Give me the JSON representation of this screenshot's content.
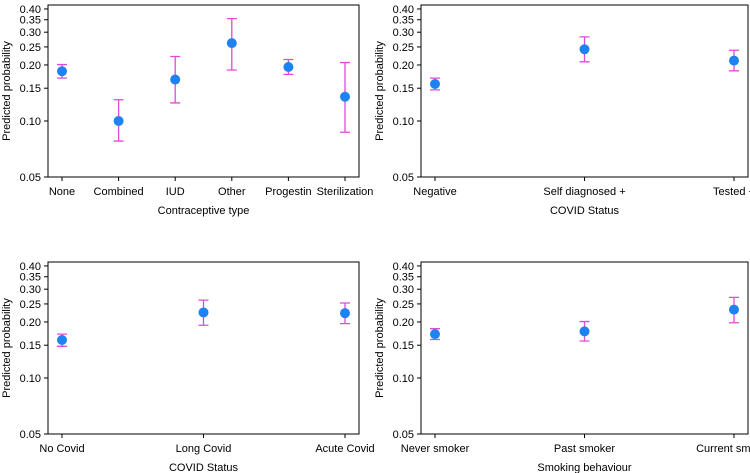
{
  "colors": {
    "point": "#1e82f0",
    "errorbar": "#e04ad8",
    "frame": "#000000"
  },
  "chart_data": [
    {
      "type": "scatter",
      "xlabel": "Contraceptive type",
      "ylabel": "Predicted probability",
      "yscale": "log",
      "ylim": [
        0.05,
        0.42
      ],
      "yticks": [
        0.05,
        0.1,
        0.15,
        0.2,
        0.25,
        0.3,
        0.35,
        0.4
      ],
      "ytick_labels": [
        "0.05",
        "0.10",
        "0.15",
        "0.20",
        "0.25",
        "0.30",
        "0.35",
        "0.40"
      ],
      "categories": [
        "None",
        "Combined",
        "IUD",
        "Other",
        "Progestin",
        "Sterilization"
      ],
      "values": [
        0.185,
        0.1,
        0.167,
        0.262,
        0.195,
        0.135
      ],
      "lower": [
        0.17,
        0.078,
        0.125,
        0.188,
        0.178,
        0.087
      ],
      "upper": [
        0.201,
        0.13,
        0.222,
        0.355,
        0.214,
        0.206
      ]
    },
    {
      "type": "scatter",
      "xlabel": "COVID Status",
      "ylabel": "Predicted probability",
      "yscale": "log",
      "ylim": [
        0.05,
        0.42
      ],
      "yticks": [
        0.05,
        0.1,
        0.15,
        0.2,
        0.25,
        0.3,
        0.35,
        0.4
      ],
      "ytick_labels": [
        "0.05",
        "0.10",
        "0.15",
        "0.20",
        "0.25",
        "0.30",
        "0.35",
        "0.40"
      ],
      "categories": [
        "Negative",
        "Self diagnosed +",
        "Tested  +"
      ],
      "values": [
        0.158,
        0.243,
        0.211
      ],
      "lower": [
        0.147,
        0.208,
        0.186
      ],
      "upper": [
        0.17,
        0.283,
        0.24
      ]
    },
    {
      "type": "scatter",
      "xlabel": "COVID Status",
      "ylabel": "Predicted probability",
      "yscale": "log",
      "ylim": [
        0.05,
        0.42
      ],
      "yticks": [
        0.05,
        0.1,
        0.15,
        0.2,
        0.25,
        0.3,
        0.35,
        0.4
      ],
      "ytick_labels": [
        "0.05",
        "0.10",
        "0.15",
        "0.20",
        "0.25",
        "0.30",
        "0.35",
        "0.40"
      ],
      "categories": [
        "No Covid",
        "Long Covid",
        "Acute Covid"
      ],
      "values": [
        0.16,
        0.225,
        0.223
      ],
      "lower": [
        0.148,
        0.192,
        0.196
      ],
      "upper": [
        0.172,
        0.262,
        0.253
      ]
    },
    {
      "type": "scatter",
      "xlabel": "Smoking behaviour",
      "ylabel": "Predicted probability",
      "yscale": "log",
      "ylim": [
        0.05,
        0.42
      ],
      "yticks": [
        0.05,
        0.1,
        0.15,
        0.2,
        0.25,
        0.3,
        0.35,
        0.4
      ],
      "ytick_labels": [
        "0.05",
        "0.10",
        "0.15",
        "0.20",
        "0.25",
        "0.30",
        "0.35",
        "0.40"
      ],
      "categories": [
        "Never smoker",
        "Past smoker",
        "Current smoker"
      ],
      "values": [
        0.172,
        0.178,
        0.233
      ],
      "lower": [
        0.161,
        0.158,
        0.198
      ],
      "upper": [
        0.184,
        0.201,
        0.271
      ]
    }
  ]
}
